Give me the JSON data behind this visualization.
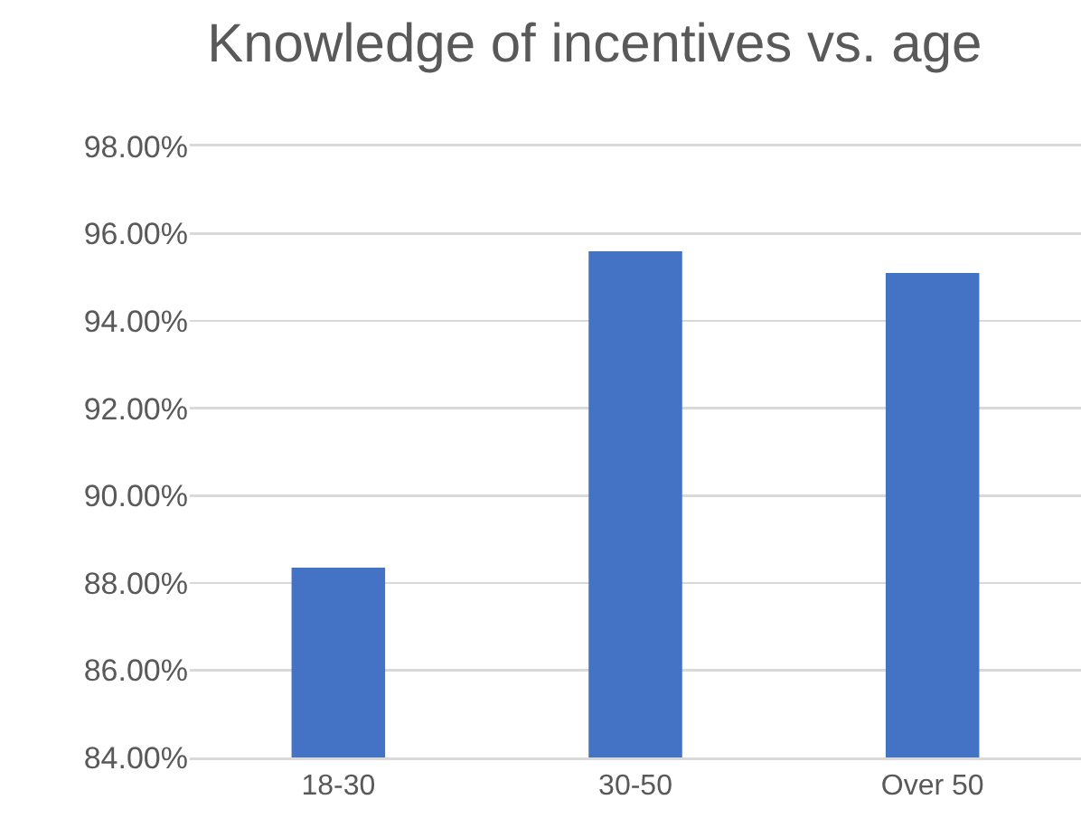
{
  "chart_data": {
    "type": "bar",
    "title": "Knowledge of incentives vs. age",
    "categories": [
      "18-30",
      "30-50",
      "Over 50"
    ],
    "values": [
      88.35,
      95.6,
      95.1
    ],
    "color": "#4472c4",
    "ylim": [
      84,
      98
    ],
    "yticks": [
      {
        "value": 84,
        "label": "84.00%"
      },
      {
        "value": 86,
        "label": "86.00%"
      },
      {
        "value": 88,
        "label": "88.00%"
      },
      {
        "value": 90,
        "label": "90.00%"
      },
      {
        "value": 92,
        "label": "92.00%"
      },
      {
        "value": 94,
        "label": "94.00%"
      },
      {
        "value": 96,
        "label": "96.00%"
      },
      {
        "value": 98,
        "label": "98.00%"
      }
    ],
    "grid": "y"
  }
}
